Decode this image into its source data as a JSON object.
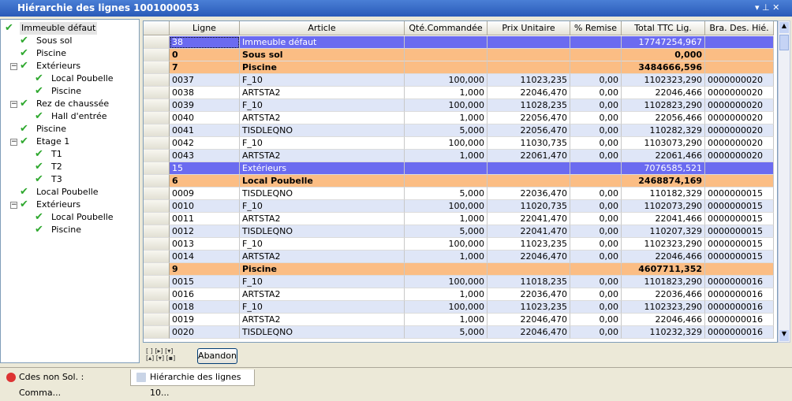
{
  "window": {
    "title": "Hiérarchie des lignes  1001000053"
  },
  "tree": [
    {
      "label": "Immeuble défaut",
      "level": 0
    },
    {
      "label": "Sous sol",
      "level": 1
    },
    {
      "label": "Piscine",
      "level": 1
    },
    {
      "label": "Extérieurs",
      "level": 1
    },
    {
      "label": "Local Poubelle",
      "level": 2
    },
    {
      "label": "Piscine",
      "level": 2
    },
    {
      "label": "Rez de chaussée",
      "level": 1
    },
    {
      "label": "Hall d'entrée",
      "level": 2
    },
    {
      "label": "Piscine",
      "level": 1
    },
    {
      "label": "Etage 1",
      "level": 1
    },
    {
      "label": "T1",
      "level": 2
    },
    {
      "label": "T2",
      "level": 2
    },
    {
      "label": "T3",
      "level": 2
    },
    {
      "label": "Local Poubelle",
      "level": 1
    },
    {
      "label": "Extérieurs",
      "level": 1
    },
    {
      "label": "Local Poubelle",
      "level": 2
    },
    {
      "label": "Piscine",
      "level": 2
    }
  ],
  "table": {
    "columns": [
      "Ligne",
      "Article",
      "Qté.Commandée",
      "Prix Unitaire",
      "% Remise",
      "Total TTC Lig.",
      "Bra. Des. Hié."
    ],
    "rows": [
      {
        "kind": "level",
        "cells": [
          "38",
          "Immeuble défaut",
          "",
          "",
          "",
          "17747254,967",
          ""
        ]
      },
      {
        "kind": "group",
        "cells": [
          "0",
          "Sous sol",
          "",
          "",
          "",
          "0,000",
          ""
        ]
      },
      {
        "kind": "group",
        "cells": [
          "7",
          "Piscine",
          "",
          "",
          "",
          "3484666,596",
          ""
        ]
      },
      {
        "kind": "item",
        "cells": [
          "0037",
          "F_10",
          "100,000",
          "11023,235",
          "0,00",
          "1102323,290",
          "0000000020"
        ]
      },
      {
        "kind": "item",
        "cells": [
          "0038",
          "ARTSTA2",
          "1,000",
          "22046,470",
          "0,00",
          "22046,466",
          "0000000020"
        ]
      },
      {
        "kind": "item",
        "cells": [
          "0039",
          "F_10",
          "100,000",
          "11028,235",
          "0,00",
          "1102823,290",
          "0000000020"
        ]
      },
      {
        "kind": "item",
        "cells": [
          "0040",
          "ARTSTA2",
          "1,000",
          "22056,470",
          "0,00",
          "22056,466",
          "0000000020"
        ]
      },
      {
        "kind": "item",
        "cells": [
          "0041",
          "TISDLEQNO",
          "5,000",
          "22056,470",
          "0,00",
          "110282,329",
          "0000000020"
        ]
      },
      {
        "kind": "item",
        "cells": [
          "0042",
          "F_10",
          "100,000",
          "11030,735",
          "0,00",
          "1103073,290",
          "0000000020"
        ]
      },
      {
        "kind": "item",
        "cells": [
          "0043",
          "ARTSTA2",
          "1,000",
          "22061,470",
          "0,00",
          "22061,466",
          "0000000020"
        ]
      },
      {
        "kind": "level",
        "cells": [
          "15",
          "Extérieurs",
          "",
          "",
          "",
          "7076585,521",
          ""
        ]
      },
      {
        "kind": "group",
        "cells": [
          "6",
          "Local Poubelle",
          "",
          "",
          "",
          "2468874,169",
          ""
        ]
      },
      {
        "kind": "item",
        "cells": [
          "0009",
          "TISDLEQNO",
          "5,000",
          "22036,470",
          "0,00",
          "110182,329",
          "0000000015"
        ]
      },
      {
        "kind": "item",
        "cells": [
          "0010",
          "F_10",
          "100,000",
          "11020,735",
          "0,00",
          "1102073,290",
          "0000000015"
        ]
      },
      {
        "kind": "item",
        "cells": [
          "0011",
          "ARTSTA2",
          "1,000",
          "22041,470",
          "0,00",
          "22041,466",
          "0000000015"
        ]
      },
      {
        "kind": "item",
        "cells": [
          "0012",
          "TISDLEQNO",
          "5,000",
          "22041,470",
          "0,00",
          "110207,329",
          "0000000015"
        ]
      },
      {
        "kind": "item",
        "cells": [
          "0013",
          "F_10",
          "100,000",
          "11023,235",
          "0,00",
          "1102323,290",
          "0000000015"
        ]
      },
      {
        "kind": "item",
        "cells": [
          "0014",
          "ARTSTA2",
          "1,000",
          "22046,470",
          "0,00",
          "22046,466",
          "0000000015"
        ]
      },
      {
        "kind": "group",
        "cells": [
          "9",
          "Piscine",
          "",
          "",
          "",
          "4607711,352",
          ""
        ]
      },
      {
        "kind": "item",
        "cells": [
          "0015",
          "F_10",
          "100,000",
          "11018,235",
          "0,00",
          "1101823,290",
          "0000000016"
        ]
      },
      {
        "kind": "item",
        "cells": [
          "0016",
          "ARTSTA2",
          "1,000",
          "22036,470",
          "0,00",
          "22036,466",
          "0000000016"
        ]
      },
      {
        "kind": "item",
        "cells": [
          "0018",
          "F_10",
          "100,000",
          "11023,235",
          "0,00",
          "1102323,290",
          "0000000016"
        ]
      },
      {
        "kind": "item",
        "cells": [
          "0019",
          "ARTSTA2",
          "1,000",
          "22046,470",
          "0,00",
          "22046,466",
          "0000000016"
        ]
      },
      {
        "kind": "item",
        "cells": [
          "0020",
          "TISDLEQNO",
          "5,000",
          "22046,470",
          "0,00",
          "110232,329",
          "0000000016"
        ]
      }
    ]
  },
  "buttons": {
    "cancel": "Abandon"
  },
  "tabs": [
    "Cdes non Sol. : Comma...",
    "Hiérarchie des lignes  10..."
  ]
}
